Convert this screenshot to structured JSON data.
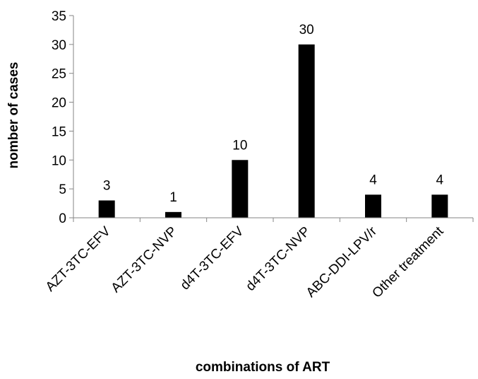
{
  "chart_data": {
    "type": "bar",
    "title": "",
    "xlabel": "combinations of ART",
    "ylabel": "nomber of cases",
    "categories": [
      "AZT-3TC-EFV",
      "AZT-3TC-NVP",
      "d4T-3TC-EFV",
      "d4T-3TC-NVP",
      "ABC-DDI-LPV/r",
      "Other treatment"
    ],
    "values": [
      3,
      1,
      10,
      30,
      4,
      4
    ],
    "ylim": [
      0,
      35
    ],
    "yticks": [
      0,
      5,
      10,
      15,
      20,
      25,
      30,
      35
    ],
    "grid": false,
    "legend": "none",
    "data_labels": true,
    "bar_color": "#000000"
  }
}
